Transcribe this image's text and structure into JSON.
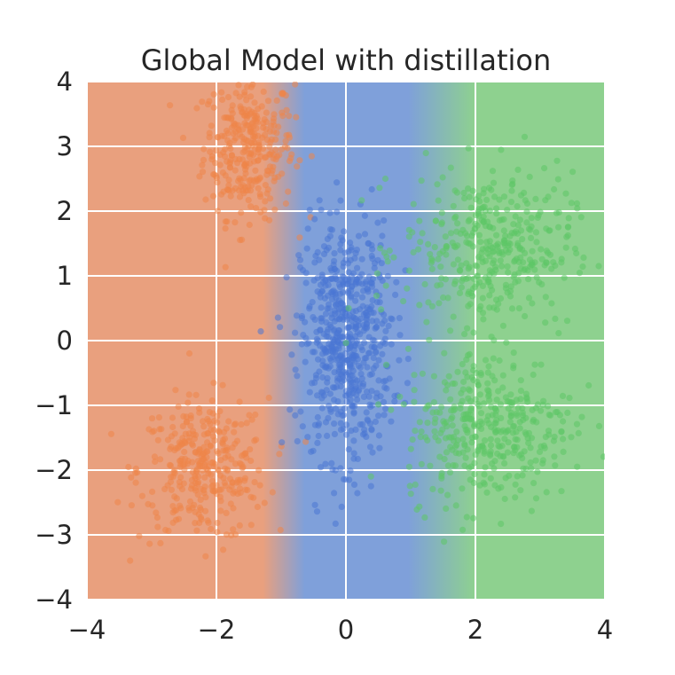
{
  "chart_data": {
    "type": "scatter",
    "title": "Global Model with distillation",
    "xlabel": "",
    "ylabel": "",
    "xlim": [
      -4,
      4
    ],
    "ylim": [
      -4,
      4
    ],
    "x_ticks": [
      "−4",
      "−2",
      "0",
      "2",
      "4"
    ],
    "y_ticks": [
      "4",
      "3",
      "2",
      "1",
      "0",
      "−1",
      "−2",
      "−3",
      "−4"
    ],
    "grid": true,
    "background": "decision-region shading (orange left, blue center, green right)",
    "colors": {
      "orange_region": "#E9A07E",
      "blue_region": "#7FA0DA",
      "green_region": "#8ED18F",
      "orange_points": "#EE8548",
      "blue_points": "#4A77D4",
      "green_points": "#5DC766",
      "grid": "#FFFFFF"
    },
    "clusters": [
      {
        "label": "",
        "color": "orange",
        "center": [
          -1.5,
          3.0
        ],
        "std": [
          0.35,
          0.55
        ],
        "count": 320
      },
      {
        "label": "",
        "color": "orange",
        "center": [
          -2.2,
          -2.0
        ],
        "std": [
          0.5,
          0.55
        ],
        "count": 330
      },
      {
        "label": "",
        "color": "blue",
        "center": [
          0.0,
          0.0
        ],
        "std": [
          0.35,
          0.9
        ],
        "count": 620
      },
      {
        "label": "",
        "color": "green",
        "center": [
          2.2,
          1.4
        ],
        "std": [
          0.65,
          0.6
        ],
        "count": 380
      },
      {
        "label": "",
        "color": "green",
        "center": [
          2.2,
          -1.3
        ],
        "std": [
          0.65,
          0.6
        ],
        "count": 380
      }
    ]
  }
}
